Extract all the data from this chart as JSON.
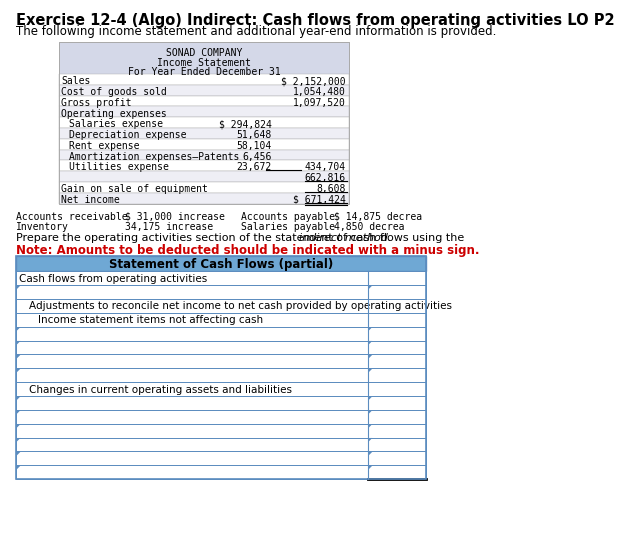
{
  "title": "Exercise 12-4 (Algo) Indirect: Cash flows from operating activities LO P2",
  "subtitle": "The following income statement and additional year-end information is provided.",
  "income_stmt_header": [
    "SONAD COMPANY",
    "Income Statement",
    "For Year Ended December 31"
  ],
  "income_rows": [
    {
      "label": "Sales",
      "col1": "",
      "col2": "$ 2,152,000",
      "indent": 0,
      "bg": "white"
    },
    {
      "label": "Cost of goods sold",
      "col1": "",
      "col2": "1,054,480",
      "indent": 0,
      "bg": "#eeeef5"
    },
    {
      "label": "Gross profit",
      "col1": "",
      "col2": "1,097,520",
      "indent": 0,
      "bg": "white"
    },
    {
      "label": "Operating expenses",
      "col1": "",
      "col2": "",
      "indent": 0,
      "bg": "#eeeef5"
    },
    {
      "label": "Salaries expense",
      "col1": "$ 294,824",
      "col2": "",
      "indent": 1,
      "bg": "white"
    },
    {
      "label": "Depreciation expense",
      "col1": "51,648",
      "col2": "",
      "indent": 1,
      "bg": "#eeeef5"
    },
    {
      "label": "Rent expense",
      "col1": "58,104",
      "col2": "",
      "indent": 1,
      "bg": "white"
    },
    {
      "label": "Amortization expenses–Patents",
      "col1": "6,456",
      "col2": "",
      "indent": 1,
      "bg": "#eeeef5"
    },
    {
      "label": "Utilities expense",
      "col1": "23,672",
      "col2": "434,704",
      "indent": 1,
      "bg": "white"
    },
    {
      "label": "",
      "col1": "",
      "col2": "662,816",
      "indent": 0,
      "bg": "#eeeef5"
    },
    {
      "label": "Gain on sale of equipment",
      "col1": "",
      "col2": "8,608",
      "indent": 0,
      "bg": "white"
    },
    {
      "label": "Net income",
      "col1": "",
      "col2": "$ 671,424",
      "indent": 0,
      "bg": "#eeeef5"
    }
  ],
  "additional_info": [
    {
      "left_label": "Accounts receivable",
      "left_val": "$ 31,000 increase",
      "right_label": "Accounts payable",
      "right_val": "$ 14,875 decrea"
    },
    {
      "left_label": "Inventory",
      "left_val": "34,175 increase",
      "right_label": "Salaries payable",
      "right_val": "4,850 decrea"
    }
  ],
  "prepare_normal": "Prepare the operating activities section of the statement of cash flows using the ",
  "prepare_italic": "indirect method.",
  "note_text": "Note: Amounts to be deducted should be indicated with a minus sign.",
  "cf_header": "Statement of Cash Flows (partial)",
  "cf_rows": [
    {
      "label": "Cash flows from operating activities",
      "indent": 0,
      "has_input": false
    },
    {
      "label": "",
      "indent": 0,
      "has_input": true
    },
    {
      "label": "Adjustments to reconcile net income to net cash provided by operating activities",
      "indent": 1,
      "has_input": false
    },
    {
      "label": "Income statement items not affecting cash",
      "indent": 2,
      "has_input": false
    },
    {
      "label": "",
      "indent": 0,
      "has_input": true
    },
    {
      "label": "",
      "indent": 0,
      "has_input": true
    },
    {
      "label": "",
      "indent": 0,
      "has_input": true
    },
    {
      "label": "",
      "indent": 0,
      "has_input": true
    },
    {
      "label": "Changes in current operating assets and liabilities",
      "indent": 1,
      "has_input": false
    },
    {
      "label": "",
      "indent": 0,
      "has_input": true
    },
    {
      "label": "",
      "indent": 0,
      "has_input": true
    },
    {
      "label": "",
      "indent": 0,
      "has_input": true
    },
    {
      "label": "",
      "indent": 0,
      "has_input": true
    },
    {
      "label": "",
      "indent": 0,
      "has_input": true
    },
    {
      "label": "",
      "indent": 0,
      "has_input": true,
      "last": true
    }
  ],
  "income_header_bg": "#d4d8e8",
  "cf_header_bg": "#6fa8d4",
  "cf_border": "#5b8cbf",
  "income_border": "#aaaaaa"
}
